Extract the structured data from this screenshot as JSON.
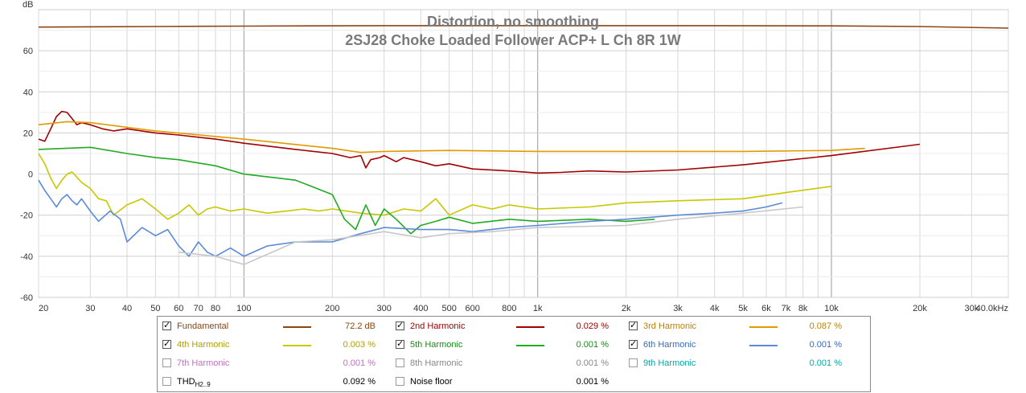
{
  "chart_data": {
    "type": "line",
    "title": "Distortion, no smoothing",
    "subtitle": "2SJ28 Choke Loaded Follower ACP+ L Ch 8R 1W",
    "ylabel": "dB",
    "xscale": "log",
    "xlim": [
      20,
      40000
    ],
    "ylim": [
      -60,
      80
    ],
    "y_ticks": [
      60,
      40,
      20,
      0,
      -20,
      -40,
      -60
    ],
    "y_tick_labels": [
      "60",
      "40",
      "20",
      "0",
      "-20",
      "-40",
      "-60"
    ],
    "x_ticks": [
      20,
      30,
      40,
      50,
      60,
      70,
      80,
      100,
      200,
      300,
      400,
      500,
      600,
      800,
      1000,
      2000,
      3000,
      4000,
      5000,
      6000,
      7000,
      8000,
      10000,
      20000,
      30000,
      40000
    ],
    "x_tick_labels": [
      "20",
      "30",
      "40",
      "50",
      "60",
      "70",
      "80",
      "100",
      "200",
      "300",
      "400",
      "500",
      "600",
      "800",
      "1k",
      "2k",
      "3k",
      "4k",
      "5k",
      "6k",
      "7k",
      "8k",
      "10k",
      "20k",
      "30k",
      "40.0kHz"
    ],
    "grid": true,
    "series": [
      {
        "name": "Fundamental",
        "color": "#8b4513",
        "x": [
          20,
          50,
          100,
          300,
          1000,
          3000,
          10000,
          20000,
          40000
        ],
        "y": [
          71.5,
          71.8,
          72.0,
          72.2,
          72.2,
          72.2,
          72.1,
          71.8,
          71.0
        ]
      },
      {
        "name": "2nd Harmonic",
        "color": "#a00000",
        "x": [
          20,
          21,
          22,
          23,
          24,
          25,
          26,
          27,
          28,
          30,
          33,
          36,
          40,
          50,
          60,
          80,
          100,
          150,
          200,
          230,
          250,
          260,
          270,
          290,
          300,
          330,
          350,
          400,
          450,
          500,
          600,
          800,
          1000,
          1200,
          1500,
          2000,
          3000,
          5000,
          10000,
          20000
        ],
        "y": [
          17,
          16,
          22,
          28,
          30.5,
          30,
          27,
          24,
          25,
          24,
          22,
          21,
          22,
          20,
          19,
          17,
          15,
          12,
          10,
          8,
          9,
          3,
          7,
          8,
          9,
          6,
          8,
          6,
          4,
          5,
          2.5,
          1.5,
          0.5,
          0.8,
          1.5,
          1,
          2,
          4.5,
          9,
          14.5
        ]
      },
      {
        "name": "3rd Harmonic",
        "color": "#e09a00",
        "x": [
          20,
          25,
          30,
          50,
          100,
          200,
          250,
          300,
          500,
          1000,
          2000,
          5000,
          10000,
          13000
        ],
        "y": [
          24,
          25.5,
          25,
          21,
          17,
          12.5,
          10.5,
          11,
          11.5,
          11,
          11,
          11,
          11.5,
          12.5
        ]
      },
      {
        "name": "4th Harmonic",
        "color": "#c8c800",
        "x": [
          20,
          21,
          22,
          23,
          24,
          25,
          26,
          28,
          30,
          32,
          34,
          36,
          40,
          45,
          50,
          55,
          60,
          65,
          70,
          75,
          80,
          90,
          100,
          120,
          140,
          160,
          180,
          200,
          250,
          300,
          350,
          400,
          450,
          500,
          600,
          700,
          800,
          1000,
          1500,
          2000,
          3000,
          5000,
          7000,
          10000
        ],
        "y": [
          10,
          5,
          -2,
          -7,
          -3,
          0,
          1,
          -4,
          -7,
          -12,
          -13,
          -20,
          -15,
          -12,
          -17,
          -22,
          -19,
          -15,
          -20,
          -17,
          -16,
          -18,
          -17,
          -19,
          -18,
          -17,
          -18,
          -17,
          -19,
          -20,
          -17,
          -18,
          -12,
          -20,
          -15,
          -17,
          -15,
          -17,
          -16,
          -14,
          -13,
          -12,
          -9,
          -6
        ]
      },
      {
        "name": "5th Harmonic",
        "color": "#22aa22",
        "x": [
          20,
          30,
          40,
          50,
          60,
          80,
          100,
          150,
          200,
          220,
          240,
          260,
          280,
          300,
          330,
          370,
          400,
          450,
          500,
          600,
          800,
          1000,
          1500,
          2000,
          2500
        ],
        "y": [
          12,
          13,
          10,
          8,
          7,
          4,
          0,
          -3,
          -10,
          -22,
          -27,
          -15,
          -25,
          -17,
          -22,
          -29,
          -25,
          -23,
          -21,
          -24,
          -22,
          -23,
          -22,
          -23,
          -22
        ]
      },
      {
        "name": "6th Harmonic",
        "color": "#5b8ad8",
        "x": [
          20,
          21,
          22,
          23,
          24,
          25,
          26,
          27,
          28,
          30,
          32,
          35,
          38,
          40,
          45,
          50,
          55,
          60,
          65,
          70,
          75,
          80,
          90,
          100,
          120,
          150,
          200,
          250,
          300,
          400,
          500,
          600,
          800,
          1000,
          1500,
          2000,
          3000,
          4000,
          5000,
          6000,
          6800
        ],
        "y": [
          -3,
          -8,
          -12,
          -16,
          -12,
          -10,
          -13,
          -15,
          -12,
          -18,
          -23,
          -18,
          -22,
          -33,
          -26,
          -30,
          -27,
          -35,
          -40,
          -33,
          -38,
          -40,
          -36,
          -40,
          -35,
          -33,
          -33,
          -29,
          -26,
          -27,
          -27,
          -28,
          -26,
          -25,
          -23,
          -22,
          -20,
          -19,
          -18,
          -16,
          -14
        ]
      },
      {
        "name": "7th Harmonic",
        "color": "#d080d0",
        "x": [],
        "y": []
      },
      {
        "name": "8th Harmonic",
        "color": "#909090",
        "x": [],
        "y": []
      },
      {
        "name": "9th Harmonic",
        "color": "#00c8c8",
        "x": [],
        "y": []
      },
      {
        "name": "Noise floor",
        "color": "#c8c8c8",
        "x": [
          60,
          80,
          100,
          150,
          200,
          300,
          400,
          500,
          700,
          1000,
          2000,
          3000,
          5000,
          8000
        ],
        "y": [
          -38,
          -40,
          -44,
          -33,
          -32,
          -28,
          -31,
          -29,
          -28,
          -26,
          -25,
          -22,
          -19,
          -16
        ]
      }
    ],
    "legend": [
      {
        "name": "Fundamental",
        "checked": true,
        "color": "#8b4513",
        "text_color": "#8b4513",
        "value": "72.2 dB"
      },
      {
        "name": "2nd Harmonic",
        "checked": true,
        "color": "#a00000",
        "text_color": "#a00000",
        "value": "0.029 %"
      },
      {
        "name": "3rd Harmonic",
        "checked": true,
        "color": "#e09a00",
        "text_color": "#c08000",
        "value": "0.087 %"
      },
      {
        "name": "4th Harmonic",
        "checked": true,
        "color": "#c8c800",
        "text_color": "#b0a000",
        "value": "0.003 %"
      },
      {
        "name": "5th Harmonic",
        "checked": true,
        "color": "#22aa22",
        "text_color": "#1a8a1a",
        "value": "0.001 %"
      },
      {
        "name": "6th Harmonic",
        "checked": true,
        "color": "#5b8ad8",
        "text_color": "#3a6ab8",
        "value": "0.001 %"
      },
      {
        "name": "7th Harmonic",
        "checked": false,
        "color": "",
        "text_color": "#c070c0",
        "value": "0.001 %"
      },
      {
        "name": "8th Harmonic",
        "checked": false,
        "color": "",
        "text_color": "#888888",
        "value": "0.001 %"
      },
      {
        "name": "9th Harmonic",
        "checked": false,
        "color": "",
        "text_color": "#00a8a8",
        "value": "0.001 %"
      },
      {
        "name": "THD",
        "sub": "H2..9",
        "checked": false,
        "color": "",
        "text_color": "#000000",
        "value": "0.092 %"
      },
      {
        "name": "Noise floor",
        "checked": false,
        "color": "",
        "text_color": "#000000",
        "value": "0.001 %"
      }
    ]
  }
}
